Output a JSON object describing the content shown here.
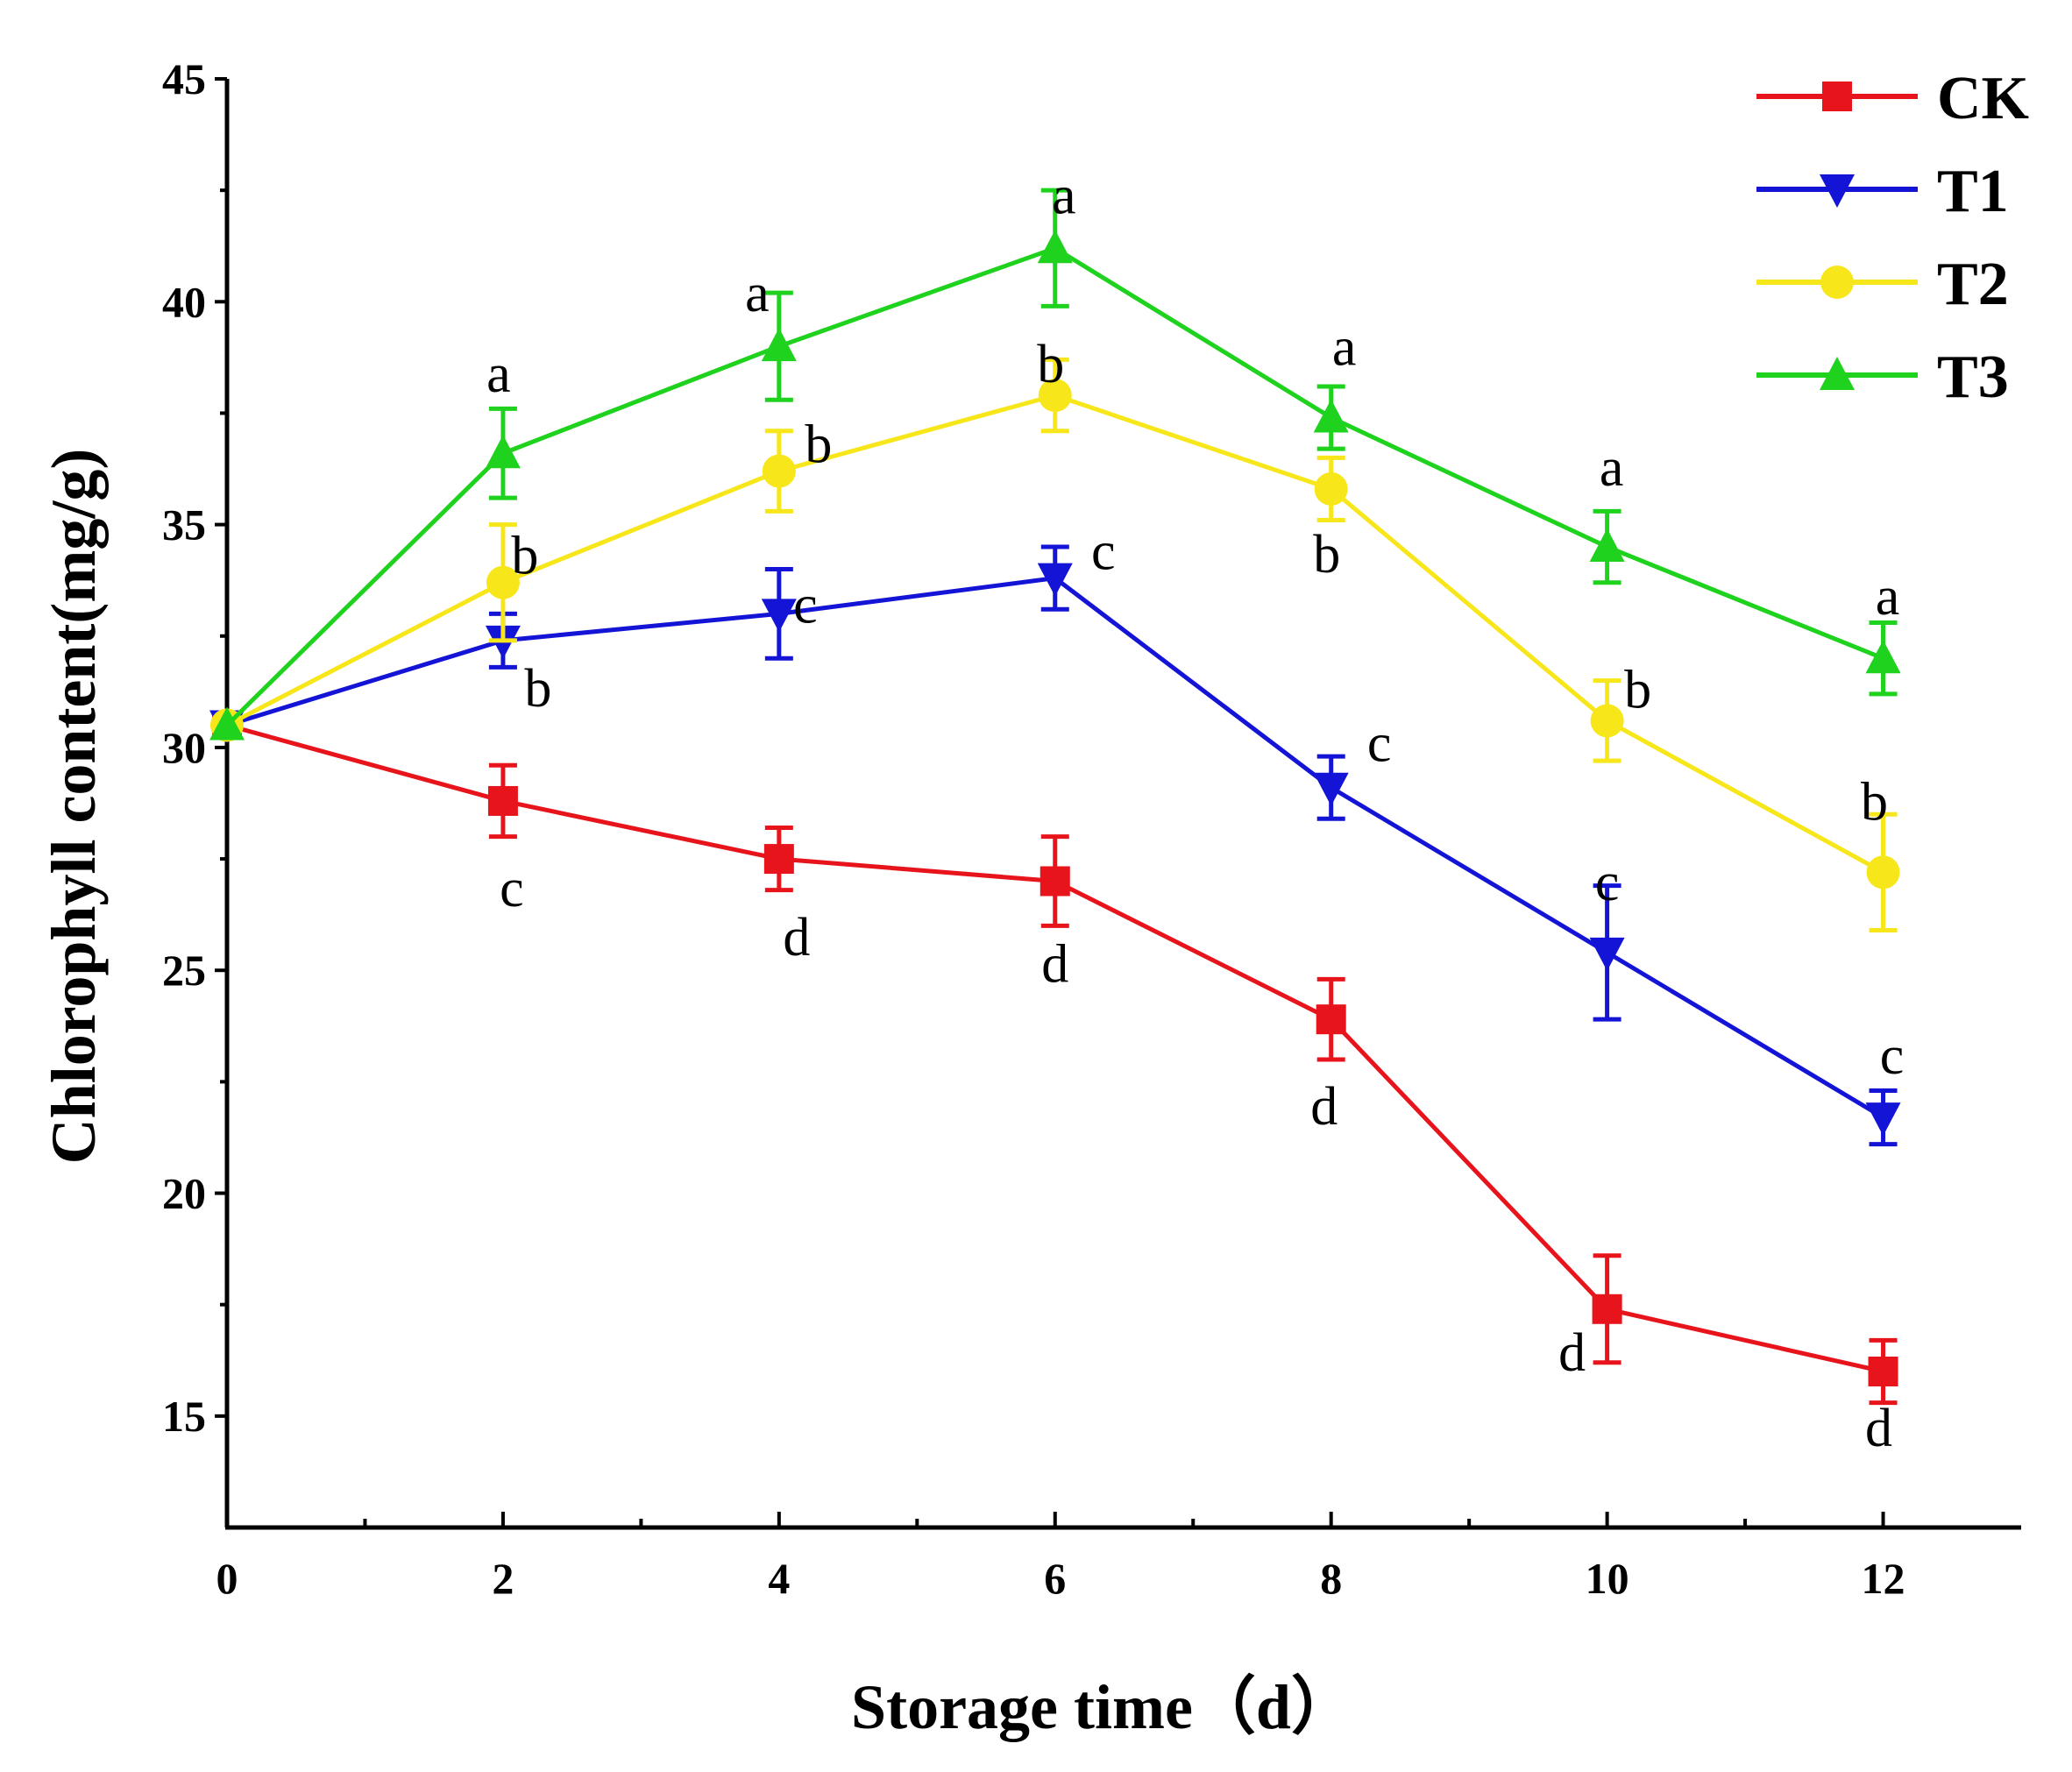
{
  "chart_data": {
    "type": "line",
    "title": "",
    "xlabel": "Storage time（d）",
    "ylabel": "Chlorophyll content(mg/g)",
    "xlim": [
      0,
      13
    ],
    "ylim": [
      12.5,
      45
    ],
    "x_ticks": [
      0,
      2,
      4,
      6,
      8,
      10,
      12
    ],
    "x_minor_ticks": [
      1,
      3,
      5,
      7,
      9,
      11
    ],
    "y_ticks": [
      15,
      20,
      25,
      30,
      35,
      40,
      45
    ],
    "y_minor_ticks": [
      17.5,
      22.5,
      27.5,
      32.5,
      37.5,
      42.5
    ],
    "x": [
      0,
      2,
      4,
      6,
      8,
      10,
      12
    ],
    "legend_position": "top-right",
    "series": [
      {
        "name": "CK",
        "color": "#e8141c",
        "marker": "square",
        "values": [
          30.5,
          28.8,
          27.5,
          27.0,
          23.9,
          17.4,
          16.0
        ],
        "errors": [
          0,
          0.8,
          0.7,
          1.0,
          0.9,
          1.2,
          0.7
        ],
        "labels": [
          "",
          "c",
          "d",
          "d",
          "d",
          "d",
          "d"
        ]
      },
      {
        "name": "T1",
        "color": "#1414d6",
        "marker": "triangle-down",
        "values": [
          30.5,
          32.4,
          33.0,
          33.8,
          29.1,
          25.4,
          21.7
        ],
        "errors": [
          0,
          0.6,
          1.0,
          0.7,
          0.7,
          1.5,
          0.6
        ],
        "labels": [
          "",
          "b",
          "c",
          "c",
          "c",
          "c",
          "c"
        ]
      },
      {
        "name": "T2",
        "color": "#f7e61a",
        "marker": "circle",
        "values": [
          30.5,
          33.7,
          36.2,
          37.9,
          35.8,
          30.6,
          27.2
        ],
        "errors": [
          0,
          1.3,
          0.9,
          0.8,
          0.7,
          0.9,
          1.3
        ],
        "labels": [
          "",
          "b",
          "b",
          "b",
          "b",
          "b",
          "b"
        ]
      },
      {
        "name": "T3",
        "color": "#1ed21e",
        "marker": "triangle-up",
        "values": [
          30.5,
          36.6,
          39.0,
          41.2,
          37.4,
          34.5,
          32.0
        ],
        "errors": [
          0,
          1.0,
          1.2,
          1.3,
          0.7,
          0.8,
          0.8
        ],
        "labels": [
          "",
          "a",
          "a",
          "a",
          "a",
          "a",
          "a"
        ]
      }
    ]
  }
}
